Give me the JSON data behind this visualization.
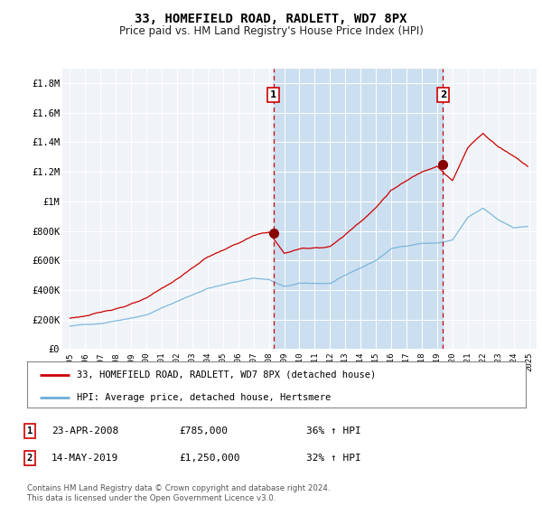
{
  "title": "33, HOMEFIELD ROAD, RADLETT, WD7 8PX",
  "subtitle": "Price paid vs. HM Land Registry's House Price Index (HPI)",
  "legend_line1": "33, HOMEFIELD ROAD, RADLETT, WD7 8PX (detached house)",
  "legend_line2": "HPI: Average price, detached house, Hertsmere",
  "footnote": "Contains HM Land Registry data © Crown copyright and database right 2024.\nThis data is licensed under the Open Government Licence v3.0.",
  "sale1_label": "1",
  "sale1_date": "23-APR-2008",
  "sale1_price": "£785,000",
  "sale1_hpi": "36% ↑ HPI",
  "sale1_year": 2008.31,
  "sale1_value": 785000,
  "sale2_label": "2",
  "sale2_date": "14-MAY-2019",
  "sale2_price": "£1,250,000",
  "sale2_hpi": "32% ↑ HPI",
  "sale2_year": 2019.38,
  "sale2_value": 1250000,
  "hpi_color": "#6baed6",
  "price_color": "#cc0000",
  "marker_color": "#880000",
  "dashed_color": "#cc0000",
  "plot_bg": "#f0f4f8",
  "shade_color": "#ccdff0",
  "ylim": [
    0,
    1900000
  ],
  "yticks": [
    0,
    200000,
    400000,
    600000,
    800000,
    1000000,
    1200000,
    1400000,
    1600000,
    1800000
  ],
  "ytick_labels": [
    "£0",
    "£200K",
    "£400K",
    "£600K",
    "£800K",
    "£1M",
    "£1.2M",
    "£1.4M",
    "£1.6M",
    "£1.8M"
  ],
  "xlim_start": 1994.5,
  "xlim_end": 2025.5,
  "xticks": [
    1995,
    1996,
    1997,
    1998,
    1999,
    2000,
    2001,
    2002,
    2003,
    2004,
    2005,
    2006,
    2007,
    2008,
    2009,
    2010,
    2011,
    2012,
    2013,
    2014,
    2015,
    2016,
    2017,
    2018,
    2019,
    2020,
    2021,
    2022,
    2023,
    2024,
    2025
  ]
}
